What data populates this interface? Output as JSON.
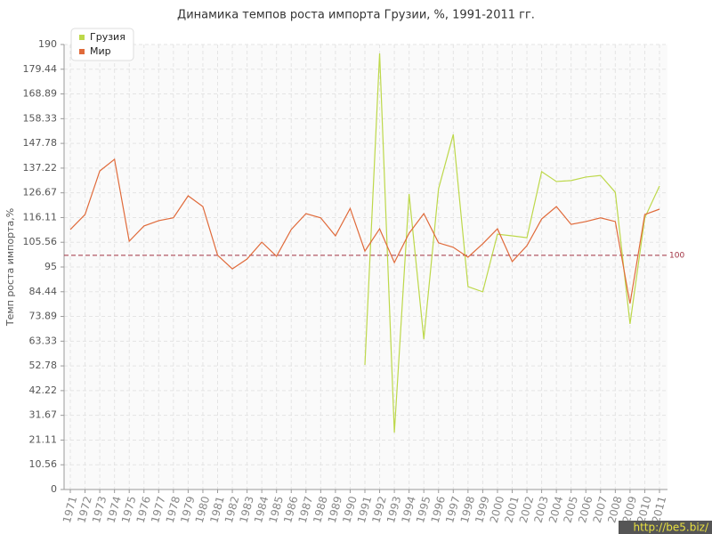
{
  "chart_data": {
    "type": "line",
    "title": "Динамика темпов роста импорта Грузии, %, 1991-2011 гг.",
    "y_label": "Темп роста импорта,%",
    "categories": [
      "1971",
      "1972",
      "1973",
      "1974",
      "1975",
      "1976",
      "1977",
      "1978",
      "1979",
      "1980",
      "1981",
      "1982",
      "1983",
      "1984",
      "1985",
      "1986",
      "1987",
      "1988",
      "1989",
      "1990",
      "1991",
      "1992",
      "1993",
      "1994",
      "1995",
      "1996",
      "1997",
      "1998",
      "1999",
      "2000",
      "2001",
      "2002",
      "2003",
      "2004",
      "2005",
      "2006",
      "2007",
      "2008",
      "2009",
      "2010",
      "2011"
    ],
    "series": [
      {
        "name": "Грузия",
        "color": "#bdd84a",
        "values": [
          null,
          null,
          null,
          null,
          null,
          null,
          null,
          null,
          null,
          null,
          null,
          null,
          null,
          null,
          null,
          null,
          null,
          null,
          null,
          null,
          53.2,
          186.2,
          24.3,
          126.2,
          64.2,
          128.4,
          151.6,
          86.6,
          84.4,
          109,
          108.3,
          107.5,
          135.7,
          131.5,
          131.9,
          133.4,
          134.1,
          126.9,
          70.7,
          116,
          129.6
        ]
      },
      {
        "name": "Мир",
        "color": "#e06a3a",
        "values": [
          111,
          117.4,
          136,
          141,
          106,
          112.5,
          114.8,
          116,
          125.4,
          120.8,
          100,
          94.2,
          98.4,
          105.6,
          99.6,
          111,
          117.8,
          116,
          108.3,
          120,
          101.8,
          111.3,
          96.9,
          109.4,
          117.8,
          105.3,
          103.4,
          99.2,
          104.9,
          111.3,
          97.3,
          104.1,
          115.5,
          120.8,
          113.2,
          114.4,
          116,
          114.4,
          79.4,
          117.4,
          119.7
        ]
      }
    ],
    "ylim": [
      0,
      190
    ],
    "yticks": [
      0,
      10.56,
      21.11,
      31.67,
      42.22,
      52.78,
      63.33,
      73.89,
      84.44,
      95,
      105.56,
      116.11,
      126.67,
      137.22,
      147.78,
      158.33,
      168.89,
      179.44,
      190
    ],
    "reference_line": {
      "value": 100,
      "color": "#a03040"
    },
    "grid": true,
    "legend": "top-left",
    "watermark": "http://be5.biz/"
  }
}
